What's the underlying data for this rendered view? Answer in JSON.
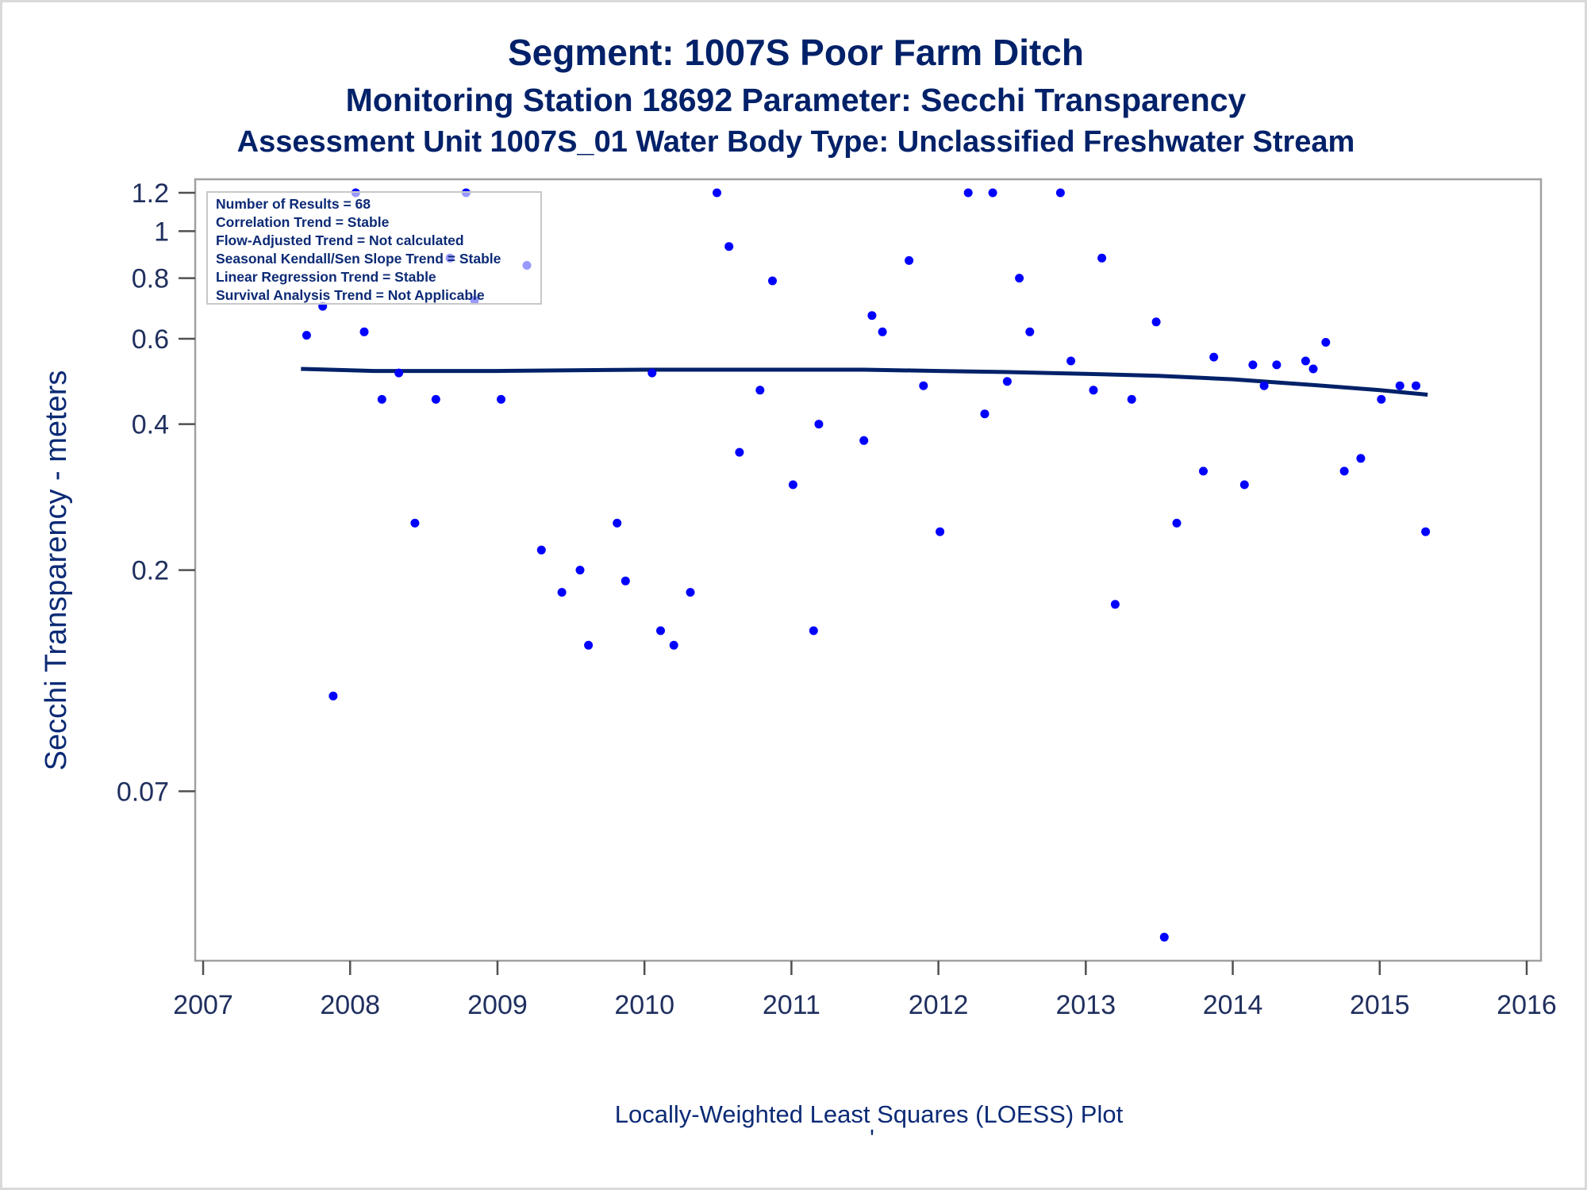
{
  "header": {
    "title": "Segment: 1007S  Poor Farm Ditch",
    "subtitle": "Monitoring Station 18692 Parameter: Secchi Transparency",
    "subtitle2": "Assessment Unit 1007S_01   Water Body Type: Unclassified Freshwater Stream"
  },
  "footnote": "Locally-Weighted Least Squares (LOESS) Plot",
  "footnote_mark": "'",
  "stats": [
    "Number of Results = 68",
    "Correlation Trend = Stable",
    "Flow-Adjusted Trend = Not calculated",
    "Seasonal Kendall/Sen Slope Trend = Stable",
    "Linear Regression Trend = Stable",
    "Survival Analysis Trend = Not Applicable"
  ],
  "colors": {
    "points": "#0000ff",
    "loess": "#012169",
    "text": "#012169",
    "frame": "#a0a0a0"
  },
  "chart_data": {
    "type": "scatter",
    "ylabel": "Secchi Transparency - meters",
    "xlabel": "",
    "xscale": "date",
    "yscale": "log",
    "xlim": [
      "2007-01-01",
      "2016-01-01"
    ],
    "ylim": [
      0.0325,
      1.2
    ],
    "x_ticks": [
      "2007",
      "2008",
      "2009",
      "2010",
      "2011",
      "2012",
      "2013",
      "2014",
      "2015",
      "2016"
    ],
    "y_ticks": [
      "0.07",
      "0.2",
      "0.4",
      "0.6",
      "0.8",
      "1",
      "1.2"
    ],
    "legend": "top-left",
    "grid": false,
    "points": [
      [
        "2007-09-15",
        0.61
      ],
      [
        "2007-10-25",
        0.7
      ],
      [
        "2007-11-20",
        0.11
      ],
      [
        "2008-01-15",
        1.2
      ],
      [
        "2008-02-05",
        0.62
      ],
      [
        "2008-03-20",
        0.45
      ],
      [
        "2008-05-01",
        0.51
      ],
      [
        "2008-06-10",
        0.25
      ],
      [
        "2008-08-01",
        0.45
      ],
      [
        "2008-09-05",
        0.88
      ],
      [
        "2008-10-15",
        1.2
      ],
      [
        "2008-11-05",
        0.72
      ],
      [
        "2009-01-10",
        0.45
      ],
      [
        "2009-03-15",
        0.85
      ],
      [
        "2009-04-20",
        0.22
      ],
      [
        "2009-06-10",
        0.18
      ],
      [
        "2009-07-25",
        0.2
      ],
      [
        "2009-08-15",
        0.14
      ],
      [
        "2009-10-25",
        0.25
      ],
      [
        "2009-11-15",
        0.19
      ],
      [
        "2010-01-20",
        0.51
      ],
      [
        "2010-02-10",
        0.15
      ],
      [
        "2010-03-15",
        0.14
      ],
      [
        "2010-04-25",
        0.18
      ],
      [
        "2010-06-30",
        1.2
      ],
      [
        "2010-07-30",
        0.93
      ],
      [
        "2010-08-25",
        0.35
      ],
      [
        "2010-10-15",
        0.47
      ],
      [
        "2010-11-15",
        0.79
      ],
      [
        "2011-01-05",
        0.3
      ],
      [
        "2011-02-25",
        0.15
      ],
      [
        "2011-03-10",
        0.4
      ],
      [
        "2011-06-30",
        0.37
      ],
      [
        "2011-07-20",
        0.67
      ],
      [
        "2011-08-15",
        0.62
      ],
      [
        "2011-10-20",
        0.87
      ],
      [
        "2011-11-25",
        0.48
      ],
      [
        "2012-01-05",
        0.24
      ],
      [
        "2012-03-15",
        1.2
      ],
      [
        "2012-04-25",
        0.42
      ],
      [
        "2012-05-15",
        1.2
      ],
      [
        "2012-06-20",
        0.49
      ],
      [
        "2012-07-20",
        0.8
      ],
      [
        "2012-08-15",
        0.62
      ],
      [
        "2012-10-30",
        1.2
      ],
      [
        "2012-11-25",
        0.54
      ],
      [
        "2013-01-20",
        0.47
      ],
      [
        "2013-02-10",
        0.88
      ],
      [
        "2013-03-15",
        0.17
      ],
      [
        "2013-04-25",
        0.45
      ],
      [
        "2013-06-25",
        0.65
      ],
      [
        "2013-07-15",
        0.035
      ],
      [
        "2013-08-15",
        0.25
      ],
      [
        "2013-10-20",
        0.32
      ],
      [
        "2013-11-15",
        0.55
      ],
      [
        "2014-01-30",
        0.3
      ],
      [
        "2014-02-20",
        0.53
      ],
      [
        "2014-03-20",
        0.48
      ],
      [
        "2014-04-20",
        0.53
      ],
      [
        "2014-07-01",
        0.54
      ],
      [
        "2014-07-20",
        0.52
      ],
      [
        "2014-08-20",
        0.59
      ],
      [
        "2014-10-05",
        0.32
      ],
      [
        "2014-11-15",
        0.34
      ],
      [
        "2015-01-05",
        0.45
      ],
      [
        "2015-02-20",
        0.48
      ],
      [
        "2015-04-01",
        0.48
      ],
      [
        "2015-04-25",
        0.24
      ]
    ],
    "loess": [
      [
        "2007-09-01",
        0.52
      ],
      [
        "2008-03-01",
        0.515
      ],
      [
        "2009-01-01",
        0.515
      ],
      [
        "2010-01-01",
        0.518
      ],
      [
        "2011-01-01",
        0.518
      ],
      [
        "2011-07-01",
        0.518
      ],
      [
        "2012-01-01",
        0.515
      ],
      [
        "2012-07-01",
        0.512
      ],
      [
        "2013-01-01",
        0.508
      ],
      [
        "2013-07-01",
        0.503
      ],
      [
        "2014-01-01",
        0.495
      ],
      [
        "2014-07-01",
        0.483
      ],
      [
        "2015-01-01",
        0.47
      ],
      [
        "2015-04-30",
        0.46
      ]
    ]
  }
}
